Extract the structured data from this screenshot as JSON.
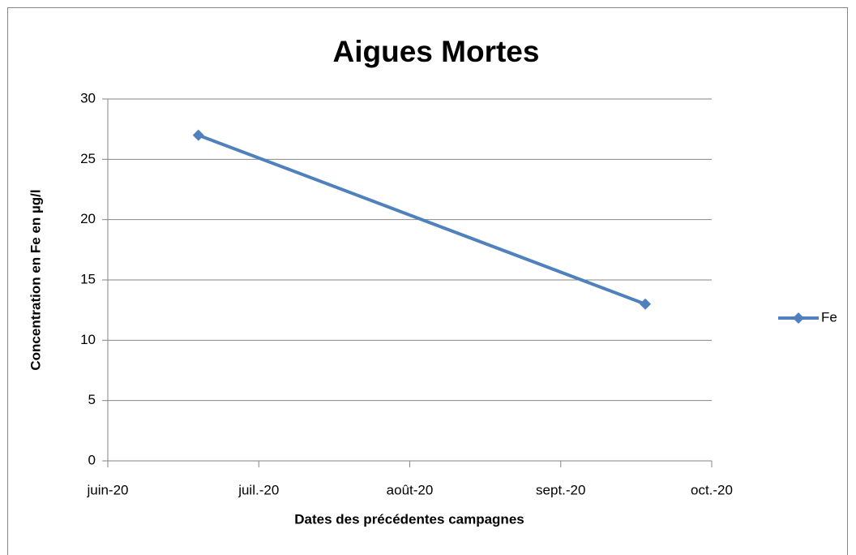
{
  "chart_data": {
    "type": "line",
    "title": "Aigues Mortes",
    "x_label": "Dates des précédentes campagnes",
    "y_label": "Concentration en Fe en µg/l",
    "x": [
      0.6,
      3.56
    ],
    "series": [
      {
        "name": "Fe",
        "color": "#4f81bd",
        "values": [
          27,
          13
        ]
      }
    ],
    "xlim": [
      0,
      4
    ],
    "xticks": [
      {
        "value": 0,
        "label": "juin-20"
      },
      {
        "value": 1,
        "label": "juil.-20"
      },
      {
        "value": 2,
        "label": "août-20"
      },
      {
        "value": 3,
        "label": "sept.-20"
      },
      {
        "value": 4,
        "label": "oct.-20"
      }
    ],
    "ylim": [
      0,
      30
    ],
    "yticks": [
      0,
      5,
      10,
      15,
      20,
      25,
      30
    ],
    "grid": true,
    "legend": "right"
  }
}
